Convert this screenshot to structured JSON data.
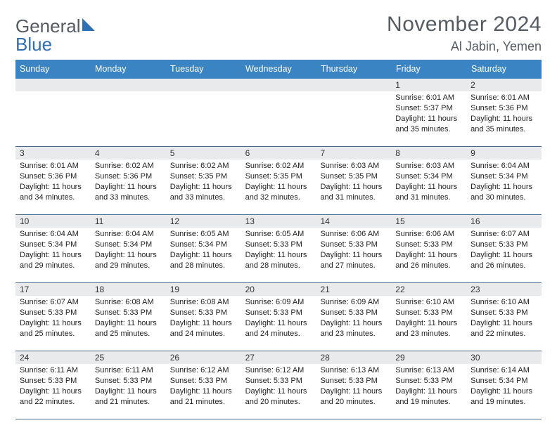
{
  "brand": {
    "part1": "General",
    "part2": "Blue"
  },
  "title": "November 2024",
  "location": "Al Jabin, Yemen",
  "colors": {
    "header_bg": "#3b84c4",
    "header_text": "#ffffff",
    "band_bg": "#e9eaeb",
    "text": "#333333",
    "rule": "#4a6a8a",
    "logo_gray": "#555b63",
    "logo_blue": "#2f6fb4"
  },
  "fonts": {
    "base_family": "Arial",
    "title_size_pt": 30,
    "location_size_pt": 18,
    "weekday_size_pt": 12.5,
    "cell_size_pt": 11
  },
  "weekdays": [
    "Sunday",
    "Monday",
    "Tuesday",
    "Wednesday",
    "Thursday",
    "Friday",
    "Saturday"
  ],
  "weeks": [
    [
      null,
      null,
      null,
      null,
      null,
      {
        "n": "1",
        "sr": "Sunrise: 6:01 AM",
        "ss": "Sunset: 5:37 PM",
        "dl": "Daylight: 11 hours and 35 minutes."
      },
      {
        "n": "2",
        "sr": "Sunrise: 6:01 AM",
        "ss": "Sunset: 5:36 PM",
        "dl": "Daylight: 11 hours and 35 minutes."
      }
    ],
    [
      {
        "n": "3",
        "sr": "Sunrise: 6:01 AM",
        "ss": "Sunset: 5:36 PM",
        "dl": "Daylight: 11 hours and 34 minutes."
      },
      {
        "n": "4",
        "sr": "Sunrise: 6:02 AM",
        "ss": "Sunset: 5:36 PM",
        "dl": "Daylight: 11 hours and 33 minutes."
      },
      {
        "n": "5",
        "sr": "Sunrise: 6:02 AM",
        "ss": "Sunset: 5:35 PM",
        "dl": "Daylight: 11 hours and 33 minutes."
      },
      {
        "n": "6",
        "sr": "Sunrise: 6:02 AM",
        "ss": "Sunset: 5:35 PM",
        "dl": "Daylight: 11 hours and 32 minutes."
      },
      {
        "n": "7",
        "sr": "Sunrise: 6:03 AM",
        "ss": "Sunset: 5:35 PM",
        "dl": "Daylight: 11 hours and 31 minutes."
      },
      {
        "n": "8",
        "sr": "Sunrise: 6:03 AM",
        "ss": "Sunset: 5:34 PM",
        "dl": "Daylight: 11 hours and 31 minutes."
      },
      {
        "n": "9",
        "sr": "Sunrise: 6:04 AM",
        "ss": "Sunset: 5:34 PM",
        "dl": "Daylight: 11 hours and 30 minutes."
      }
    ],
    [
      {
        "n": "10",
        "sr": "Sunrise: 6:04 AM",
        "ss": "Sunset: 5:34 PM",
        "dl": "Daylight: 11 hours and 29 minutes."
      },
      {
        "n": "11",
        "sr": "Sunrise: 6:04 AM",
        "ss": "Sunset: 5:34 PM",
        "dl": "Daylight: 11 hours and 29 minutes."
      },
      {
        "n": "12",
        "sr": "Sunrise: 6:05 AM",
        "ss": "Sunset: 5:34 PM",
        "dl": "Daylight: 11 hours and 28 minutes."
      },
      {
        "n": "13",
        "sr": "Sunrise: 6:05 AM",
        "ss": "Sunset: 5:33 PM",
        "dl": "Daylight: 11 hours and 28 minutes."
      },
      {
        "n": "14",
        "sr": "Sunrise: 6:06 AM",
        "ss": "Sunset: 5:33 PM",
        "dl": "Daylight: 11 hours and 27 minutes."
      },
      {
        "n": "15",
        "sr": "Sunrise: 6:06 AM",
        "ss": "Sunset: 5:33 PM",
        "dl": "Daylight: 11 hours and 26 minutes."
      },
      {
        "n": "16",
        "sr": "Sunrise: 6:07 AM",
        "ss": "Sunset: 5:33 PM",
        "dl": "Daylight: 11 hours and 26 minutes."
      }
    ],
    [
      {
        "n": "17",
        "sr": "Sunrise: 6:07 AM",
        "ss": "Sunset: 5:33 PM",
        "dl": "Daylight: 11 hours and 25 minutes."
      },
      {
        "n": "18",
        "sr": "Sunrise: 6:08 AM",
        "ss": "Sunset: 5:33 PM",
        "dl": "Daylight: 11 hours and 25 minutes."
      },
      {
        "n": "19",
        "sr": "Sunrise: 6:08 AM",
        "ss": "Sunset: 5:33 PM",
        "dl": "Daylight: 11 hours and 24 minutes."
      },
      {
        "n": "20",
        "sr": "Sunrise: 6:09 AM",
        "ss": "Sunset: 5:33 PM",
        "dl": "Daylight: 11 hours and 24 minutes."
      },
      {
        "n": "21",
        "sr": "Sunrise: 6:09 AM",
        "ss": "Sunset: 5:33 PM",
        "dl": "Daylight: 11 hours and 23 minutes."
      },
      {
        "n": "22",
        "sr": "Sunrise: 6:10 AM",
        "ss": "Sunset: 5:33 PM",
        "dl": "Daylight: 11 hours and 23 minutes."
      },
      {
        "n": "23",
        "sr": "Sunrise: 6:10 AM",
        "ss": "Sunset: 5:33 PM",
        "dl": "Daylight: 11 hours and 22 minutes."
      }
    ],
    [
      {
        "n": "24",
        "sr": "Sunrise: 6:11 AM",
        "ss": "Sunset: 5:33 PM",
        "dl": "Daylight: 11 hours and 22 minutes."
      },
      {
        "n": "25",
        "sr": "Sunrise: 6:11 AM",
        "ss": "Sunset: 5:33 PM",
        "dl": "Daylight: 11 hours and 21 minutes."
      },
      {
        "n": "26",
        "sr": "Sunrise: 6:12 AM",
        "ss": "Sunset: 5:33 PM",
        "dl": "Daylight: 11 hours and 21 minutes."
      },
      {
        "n": "27",
        "sr": "Sunrise: 6:12 AM",
        "ss": "Sunset: 5:33 PM",
        "dl": "Daylight: 11 hours and 20 minutes."
      },
      {
        "n": "28",
        "sr": "Sunrise: 6:13 AM",
        "ss": "Sunset: 5:33 PM",
        "dl": "Daylight: 11 hours and 20 minutes."
      },
      {
        "n": "29",
        "sr": "Sunrise: 6:13 AM",
        "ss": "Sunset: 5:33 PM",
        "dl": "Daylight: 11 hours and 19 minutes."
      },
      {
        "n": "30",
        "sr": "Sunrise: 6:14 AM",
        "ss": "Sunset: 5:34 PM",
        "dl": "Daylight: 11 hours and 19 minutes."
      }
    ]
  ]
}
